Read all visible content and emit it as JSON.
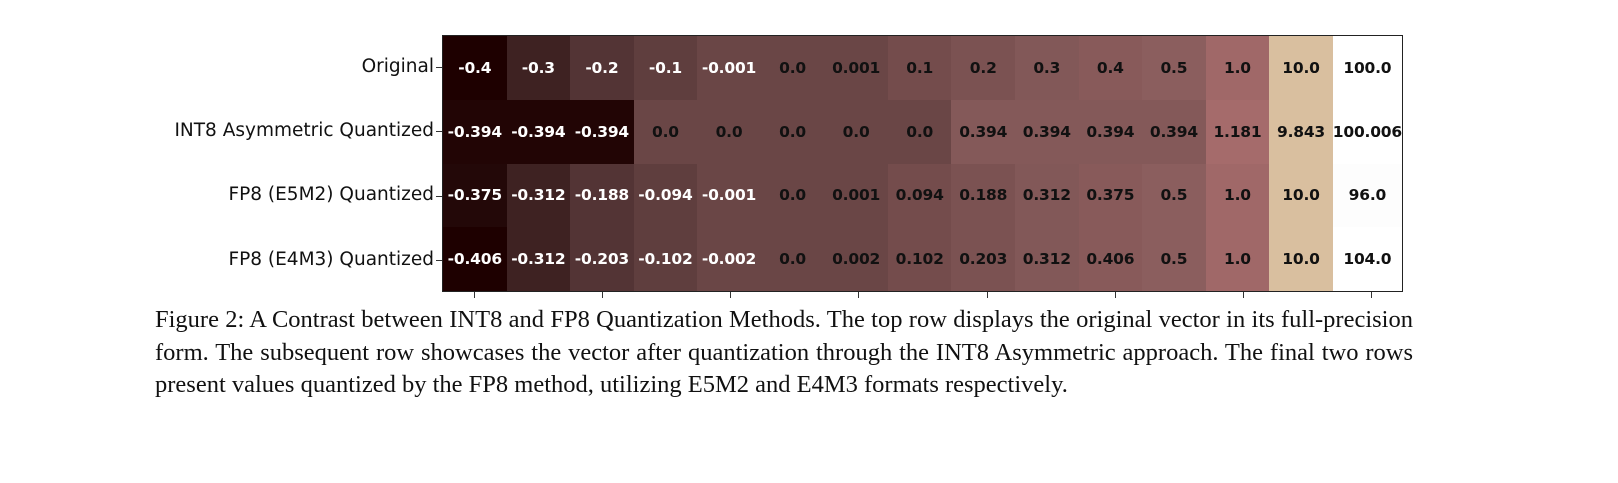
{
  "chart_data": {
    "type": "heatmap",
    "title": "",
    "xlabel": "",
    "ylabel": "",
    "rows": [
      "Original",
      "INT8 Asymmetric Quantized",
      "FP8 (E5M2) Quantized",
      "FP8 (E4M3) Quantized"
    ],
    "columns": 15,
    "x_tick_positions": [
      0,
      2,
      4,
      6,
      8,
      10,
      12,
      14
    ],
    "x_tick_labels": [
      "",
      "",
      "",
      "",
      "",
      "",
      "",
      ""
    ],
    "values": [
      [
        "-0.4",
        "-0.3",
        "-0.2",
        "-0.1",
        "-0.001",
        "0.0",
        "0.001",
        "0.1",
        "0.2",
        "0.3",
        "0.4",
        "0.5",
        "1.0",
        "10.0",
        "100.0"
      ],
      [
        "-0.394",
        "-0.394",
        "-0.394",
        "0.0",
        "0.0",
        "0.0",
        "0.0",
        "0.0",
        "0.394",
        "0.394",
        "0.394",
        "0.394",
        "1.181",
        "9.843",
        "100.006"
      ],
      [
        "-0.375",
        "-0.312",
        "-0.188",
        "-0.094",
        "-0.001",
        "0.0",
        "0.001",
        "0.094",
        "0.188",
        "0.312",
        "0.375",
        "0.5",
        "1.0",
        "10.0",
        "96.0"
      ],
      [
        "-0.406",
        "-0.312",
        "-0.203",
        "-0.102",
        "-0.002",
        "0.0",
        "0.002",
        "0.102",
        "0.203",
        "0.312",
        "0.406",
        "0.5",
        "1.0",
        "10.0",
        "104.0"
      ]
    ],
    "colormap": "pink (rank-normalized per row)",
    "cell_colors": [
      [
        "#1e0000",
        "#3e2222",
        "#533435",
        "#5f3e3e",
        "#6a4646",
        "#6a4646",
        "#6a4646",
        "#744c4c",
        "#7b5252",
        "#825858",
        "#885a5a",
        "#8b5e5e",
        "#a06868",
        "#d9bf9f",
        "#ffffff"
      ],
      [
        "#220505",
        "#220505",
        "#220505",
        "#6a4646",
        "#6a4646",
        "#6a4646",
        "#6a4646",
        "#6a4646",
        "#845959",
        "#845959",
        "#845959",
        "#845959",
        "#a56b6b",
        "#d9bf9f",
        "#ffffff"
      ],
      [
        "#230808",
        "#3e2222",
        "#533435",
        "#5f3e3e",
        "#6a4646",
        "#6a4646",
        "#6a4646",
        "#744c4c",
        "#7b5252",
        "#825858",
        "#885a5a",
        "#8b5e5e",
        "#a06868",
        "#d9bf9f",
        "#fdfdfd"
      ],
      [
        "#1e0000",
        "#3e2222",
        "#533435",
        "#5f3e3e",
        "#6a4646",
        "#6a4646",
        "#6a4646",
        "#744c4c",
        "#7b5252",
        "#825858",
        "#885a5a",
        "#8b5e5e",
        "#a06868",
        "#d9bf9f",
        "#ffffff"
      ]
    ],
    "text_colors": [
      [
        "#ffffff",
        "#ffffff",
        "#ffffff",
        "#ffffff",
        "#ffffff",
        "#111111",
        "#111111",
        "#111111",
        "#111111",
        "#111111",
        "#111111",
        "#111111",
        "#111111",
        "#111111",
        "#111111"
      ],
      [
        "#ffffff",
        "#ffffff",
        "#ffffff",
        "#111111",
        "#111111",
        "#111111",
        "#111111",
        "#111111",
        "#111111",
        "#111111",
        "#111111",
        "#111111",
        "#111111",
        "#111111",
        "#111111"
      ],
      [
        "#ffffff",
        "#ffffff",
        "#ffffff",
        "#ffffff",
        "#ffffff",
        "#111111",
        "#111111",
        "#111111",
        "#111111",
        "#111111",
        "#111111",
        "#111111",
        "#111111",
        "#111111",
        "#111111"
      ],
      [
        "#ffffff",
        "#ffffff",
        "#ffffff",
        "#ffffff",
        "#ffffff",
        "#111111",
        "#111111",
        "#111111",
        "#111111",
        "#111111",
        "#111111",
        "#111111",
        "#111111",
        "#111111",
        "#111111"
      ]
    ],
    "grid": false,
    "legend": null
  },
  "caption": "Figure 2: A Contrast between INT8 and FP8 Quantization Methods. The top row displays the original vector in its full-precision form. The subsequent row showcases the vector after quantization through the INT8 Asymmetric approach. The final two rows present values quantized by the FP8 method, utilizing E5M2 and E4M3 formats respectively."
}
